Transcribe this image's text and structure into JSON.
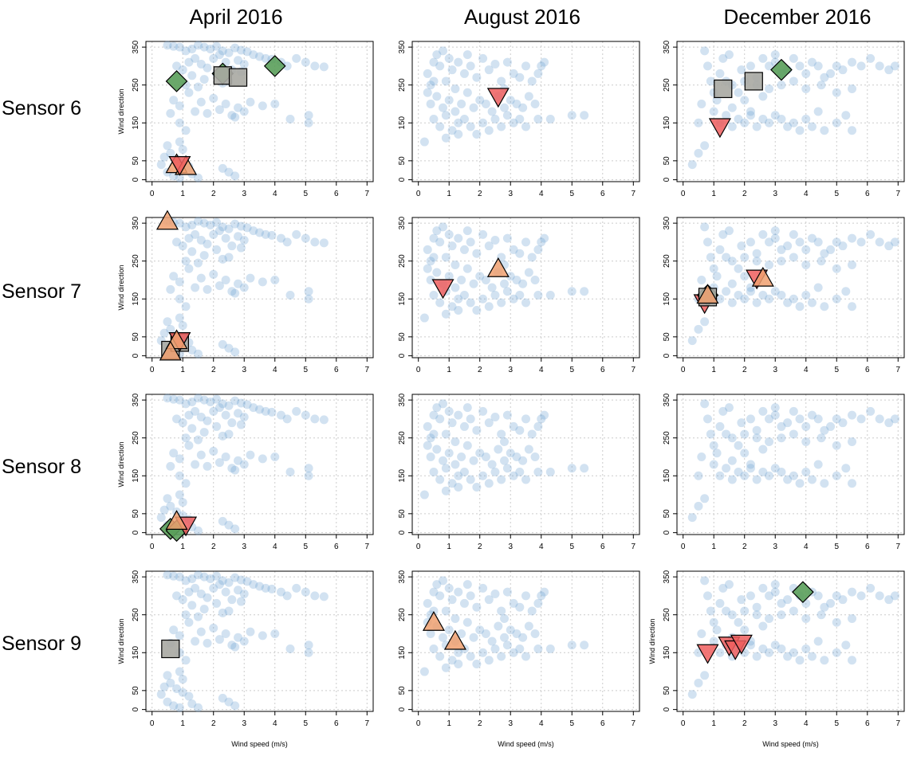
{
  "figure": {
    "column_titles": [
      "April 2016",
      "August 2016",
      "December 2016"
    ],
    "row_titles": [
      "Sensor 6",
      "Sensor 7",
      "Sensor 8",
      "Sensor 9"
    ]
  },
  "colors": {
    "point": "#6a9fcf",
    "diamond": "#5a9e5a",
    "square": "#a9a9a2",
    "triangle_up": "#f0a070",
    "triangle_down": "#ee5e5e",
    "axis": "#000000",
    "grid": "#cccccc"
  },
  "chart_data": {
    "type": "scatter",
    "panel_grid": {
      "rows": 4,
      "cols": 3
    },
    "xlabel": "Wind speed (m/s)",
    "ylabel": "Wind direction",
    "xlim": [
      -0.2,
      7.2
    ],
    "ylim": [
      -5,
      365
    ],
    "xticks": [
      0,
      1,
      2,
      3,
      4,
      5,
      6,
      7
    ],
    "yticks": [
      0,
      50,
      150,
      250,
      350
    ],
    "grid": true,
    "background_series": {
      "April 2016": [
        [
          0.5,
          355
        ],
        [
          0.7,
          352
        ],
        [
          0.9,
          350
        ],
        [
          1.1,
          340
        ],
        [
          1.3,
          345
        ],
        [
          1.5,
          355
        ],
        [
          1.7,
          350
        ],
        [
          1.9,
          345
        ],
        [
          2.1,
          352
        ],
        [
          2.3,
          340
        ],
        [
          2.5,
          335
        ],
        [
          2.7,
          348
        ],
        [
          2.9,
          342
        ],
        [
          3.1,
          338
        ],
        [
          3.3,
          330
        ],
        [
          3.5,
          325
        ],
        [
          3.7,
          320
        ],
        [
          3.9,
          318
        ],
        [
          4.2,
          310
        ],
        [
          4.4,
          300
        ],
        [
          4.7,
          320
        ],
        [
          5.0,
          310
        ],
        [
          5.3,
          300
        ],
        [
          5.6,
          298
        ],
        [
          0.8,
          300
        ],
        [
          1.0,
          290
        ],
        [
          1.2,
          310
        ],
        [
          1.4,
          320
        ],
        [
          1.6,
          305
        ],
        [
          1.8,
          295
        ],
        [
          2.0,
          320
        ],
        [
          2.2,
          330
        ],
        [
          2.4,
          310
        ],
        [
          2.6,
          290
        ],
        [
          2.8,
          315
        ],
        [
          3.0,
          305
        ],
        [
          1.3,
          275
        ],
        [
          1.7,
          265
        ],
        [
          2.1,
          280
        ],
        [
          2.5,
          260
        ],
        [
          2.9,
          285
        ],
        [
          1.1,
          250
        ],
        [
          1.5,
          245
        ],
        [
          2.3,
          255
        ],
        [
          0.7,
          210
        ],
        [
          0.9,
          195
        ],
        [
          1.2,
          230
        ],
        [
          1.6,
          205
        ],
        [
          2.0,
          215
        ],
        [
          2.4,
          200
        ],
        [
          2.8,
          190
        ],
        [
          3.2,
          205
        ],
        [
          3.6,
          195
        ],
        [
          4.0,
          200
        ],
        [
          1.4,
          180
        ],
        [
          1.8,
          175
        ],
        [
          2.2,
          185
        ],
        [
          2.6,
          170
        ],
        [
          3.0,
          180
        ],
        [
          2.7,
          165
        ],
        [
          4.5,
          160
        ],
        [
          5.1,
          170
        ],
        [
          5.1,
          150
        ],
        [
          0.9,
          150
        ],
        [
          1.1,
          130
        ],
        [
          0.6,
          175
        ],
        [
          0.4,
          60
        ],
        [
          0.6,
          70
        ],
        [
          0.8,
          55
        ],
        [
          1.0,
          45
        ],
        [
          1.2,
          35
        ],
        [
          0.5,
          20
        ],
        [
          0.7,
          10
        ],
        [
          0.9,
          5
        ],
        [
          1.3,
          15
        ],
        [
          1.5,
          5
        ],
        [
          0.3,
          40
        ],
        [
          2.3,
          30
        ],
        [
          2.5,
          20
        ],
        [
          2.7,
          10
        ],
        [
          0.5,
          90
        ],
        [
          0.9,
          100
        ],
        [
          1.0,
          80
        ]
      ],
      "August 2016": [
        [
          0.2,
          100
        ],
        [
          0.3,
          280
        ],
        [
          0.4,
          250
        ],
        [
          0.5,
          310
        ],
        [
          0.6,
          330
        ],
        [
          0.7,
          300
        ],
        [
          0.8,
          340
        ],
        [
          0.9,
          260
        ],
        [
          1.0,
          320
        ],
        [
          1.1,
          290
        ],
        [
          1.2,
          240
        ],
        [
          1.3,
          310
        ],
        [
          1.5,
          280
        ],
        [
          1.7,
          300
        ],
        [
          1.9,
          270
        ],
        [
          2.1,
          320
        ],
        [
          2.3,
          290
        ],
        [
          2.5,
          305
        ],
        [
          2.7,
          260
        ],
        [
          2.9,
          310
        ],
        [
          3.1,
          280
        ],
        [
          3.3,
          270
        ],
        [
          3.5,
          300
        ],
        [
          3.7,
          260
        ],
        [
          3.9,
          280
        ],
        [
          4.0,
          300
        ],
        [
          4.1,
          310
        ],
        [
          0.4,
          200
        ],
        [
          0.6,
          220
        ],
        [
          0.8,
          190
        ],
        [
          1.0,
          210
        ],
        [
          1.2,
          180
        ],
        [
          1.4,
          200
        ],
        [
          1.6,
          230
        ],
        [
          1.8,
          190
        ],
        [
          2.0,
          210
        ],
        [
          2.2,
          200
        ],
        [
          2.4,
          180
        ],
        [
          2.6,
          220
        ],
        [
          2.8,
          190
        ],
        [
          3.0,
          210
        ],
        [
          3.2,
          200
        ],
        [
          3.4,
          190
        ],
        [
          3.6,
          220
        ],
        [
          3.8,
          200
        ],
        [
          0.5,
          160
        ],
        [
          0.7,
          140
        ],
        [
          0.9,
          170
        ],
        [
          1.1,
          130
        ],
        [
          1.3,
          150
        ],
        [
          1.5,
          160
        ],
        [
          1.7,
          140
        ],
        [
          1.9,
          120
        ],
        [
          2.1,
          150
        ],
        [
          2.3,
          130
        ],
        [
          2.5,
          160
        ],
        [
          2.7,
          140
        ],
        [
          2.9,
          170
        ],
        [
          3.1,
          150
        ],
        [
          3.3,
          160
        ],
        [
          3.5,
          140
        ],
        [
          3.9,
          160
        ],
        [
          4.3,
          160
        ],
        [
          5.0,
          170
        ],
        [
          5.4,
          170
        ],
        [
          0.9,
          110
        ],
        [
          1.3,
          120
        ],
        [
          0.3,
          230
        ],
        [
          0.5,
          260
        ],
        [
          1.6,
          330
        ],
        [
          2.8,
          240
        ]
      ],
      "December 2016": [
        [
          0.3,
          40
        ],
        [
          0.5,
          70
        ],
        [
          0.7,
          90
        ],
        [
          0.5,
          150
        ],
        [
          0.6,
          200
        ],
        [
          0.7,
          340
        ],
        [
          0.8,
          300
        ],
        [
          1.0,
          230
        ],
        [
          1.1,
          210
        ],
        [
          1.2,
          280
        ],
        [
          1.3,
          320
        ],
        [
          1.4,
          260
        ],
        [
          1.6,
          190
        ],
        [
          1.8,
          230
        ],
        [
          2.0,
          210
        ],
        [
          2.2,
          180
        ],
        [
          2.4,
          250
        ],
        [
          2.6,
          220
        ],
        [
          2.8,
          300
        ],
        [
          3.0,
          310
        ],
        [
          3.2,
          280
        ],
        [
          3.4,
          290
        ],
        [
          3.6,
          320
        ],
        [
          3.8,
          300
        ],
        [
          4.0,
          280
        ],
        [
          4.2,
          310
        ],
        [
          4.4,
          300
        ],
        [
          4.6,
          270
        ],
        [
          4.8,
          280
        ],
        [
          5.0,
          300
        ],
        [
          5.2,
          290
        ],
        [
          5.5,
          310
        ],
        [
          5.8,
          300
        ],
        [
          6.1,
          320
        ],
        [
          6.4,
          300
        ],
        [
          6.7,
          290
        ],
        [
          6.9,
          300
        ],
        [
          1.0,
          180
        ],
        [
          1.2,
          150
        ],
        [
          1.4,
          170
        ],
        [
          1.6,
          140
        ],
        [
          1.8,
          160
        ],
        [
          2.0,
          150
        ],
        [
          2.2,
          170
        ],
        [
          2.4,
          140
        ],
        [
          2.6,
          160
        ],
        [
          2.8,
          150
        ],
        [
          3.0,
          170
        ],
        [
          3.2,
          160
        ],
        [
          3.4,
          140
        ],
        [
          3.6,
          150
        ],
        [
          3.8,
          130
        ],
        [
          4.0,
          160
        ],
        [
          4.2,
          140
        ],
        [
          4.4,
          180
        ],
        [
          4.6,
          130
        ],
        [
          5.0,
          150
        ],
        [
          5.3,
          170
        ],
        [
          5.5,
          130
        ],
        [
          1.6,
          250
        ],
        [
          2.0,
          260
        ],
        [
          2.4,
          270
        ],
        [
          2.8,
          240
        ],
        [
          3.2,
          250
        ],
        [
          3.6,
          260
        ],
        [
          4.0,
          240
        ],
        [
          4.5,
          250
        ],
        [
          5.0,
          230
        ],
        [
          5.5,
          240
        ],
        [
          2.2,
          300
        ],
        [
          2.6,
          320
        ],
        [
          3.0,
          330
        ],
        [
          1.5,
          330
        ],
        [
          0.9,
          260
        ],
        [
          1.9,
          290
        ]
      ]
    },
    "panels": [
      {
        "row": 0,
        "col": 0,
        "markers": [
          {
            "shape": "diamond",
            "x": 0.8,
            "y": 260
          },
          {
            "shape": "diamond",
            "x": 2.3,
            "y": 280
          },
          {
            "shape": "diamond",
            "x": 4.0,
            "y": 300
          },
          {
            "shape": "square",
            "x": 2.3,
            "y": 275
          },
          {
            "shape": "square",
            "x": 2.8,
            "y": 270
          },
          {
            "shape": "triangle_up",
            "x": 0.8,
            "y": 40
          },
          {
            "shape": "triangle_up",
            "x": 1.1,
            "y": 35
          },
          {
            "shape": "triangle_down",
            "x": 0.9,
            "y": 40
          }
        ]
      },
      {
        "row": 0,
        "col": 1,
        "markers": [
          {
            "shape": "triangle_down",
            "x": 2.6,
            "y": 220
          }
        ]
      },
      {
        "row": 0,
        "col": 2,
        "markers": [
          {
            "shape": "diamond",
            "x": 3.2,
            "y": 290
          },
          {
            "shape": "square",
            "x": 1.3,
            "y": 240
          },
          {
            "shape": "square",
            "x": 2.3,
            "y": 260
          },
          {
            "shape": "triangle_down",
            "x": 1.2,
            "y": 140
          }
        ]
      },
      {
        "row": 1,
        "col": 0,
        "markers": [
          {
            "shape": "triangle_up",
            "x": 0.5,
            "y": 355
          },
          {
            "shape": "square",
            "x": 0.6,
            "y": 15
          },
          {
            "shape": "square",
            "x": 0.9,
            "y": 35
          },
          {
            "shape": "triangle_down",
            "x": 0.9,
            "y": 40
          },
          {
            "shape": "triangle_up",
            "x": 0.8,
            "y": 40
          },
          {
            "shape": "triangle_up",
            "x": 0.6,
            "y": 10
          }
        ]
      },
      {
        "row": 1,
        "col": 1,
        "markers": [
          {
            "shape": "triangle_down",
            "x": 0.8,
            "y": 180
          },
          {
            "shape": "triangle_up",
            "x": 2.6,
            "y": 230
          }
        ]
      },
      {
        "row": 1,
        "col": 2,
        "markers": [
          {
            "shape": "triangle_down",
            "x": 0.7,
            "y": 140
          },
          {
            "shape": "diamond",
            "x": 0.8,
            "y": 160
          },
          {
            "shape": "square",
            "x": 0.8,
            "y": 155
          },
          {
            "shape": "triangle_up",
            "x": 0.8,
            "y": 160
          },
          {
            "shape": "triangle_down",
            "x": 2.4,
            "y": 205
          },
          {
            "shape": "triangle_up",
            "x": 2.6,
            "y": 205
          }
        ]
      },
      {
        "row": 2,
        "col": 0,
        "markers": [
          {
            "shape": "diamond",
            "x": 0.6,
            "y": 10
          },
          {
            "shape": "diamond",
            "x": 0.8,
            "y": 5
          },
          {
            "shape": "triangle_down",
            "x": 1.1,
            "y": 20
          },
          {
            "shape": "triangle_up",
            "x": 0.8,
            "y": 30
          }
        ]
      },
      {
        "row": 2,
        "col": 1,
        "markers": []
      },
      {
        "row": 2,
        "col": 2,
        "markers": []
      },
      {
        "row": 3,
        "col": 0,
        "markers": [
          {
            "shape": "square",
            "x": 0.6,
            "y": 160
          }
        ]
      },
      {
        "row": 3,
        "col": 1,
        "markers": [
          {
            "shape": "triangle_up",
            "x": 0.5,
            "y": 230
          },
          {
            "shape": "triangle_up",
            "x": 1.2,
            "y": 180
          }
        ]
      },
      {
        "row": 3,
        "col": 2,
        "markers": [
          {
            "shape": "diamond",
            "x": 3.9,
            "y": 310
          },
          {
            "shape": "triangle_down",
            "x": 0.8,
            "y": 150
          },
          {
            "shape": "triangle_down",
            "x": 1.5,
            "y": 170
          },
          {
            "shape": "triangle_down",
            "x": 1.7,
            "y": 160
          },
          {
            "shape": "triangle_down",
            "x": 1.9,
            "y": 175
          }
        ]
      }
    ]
  }
}
